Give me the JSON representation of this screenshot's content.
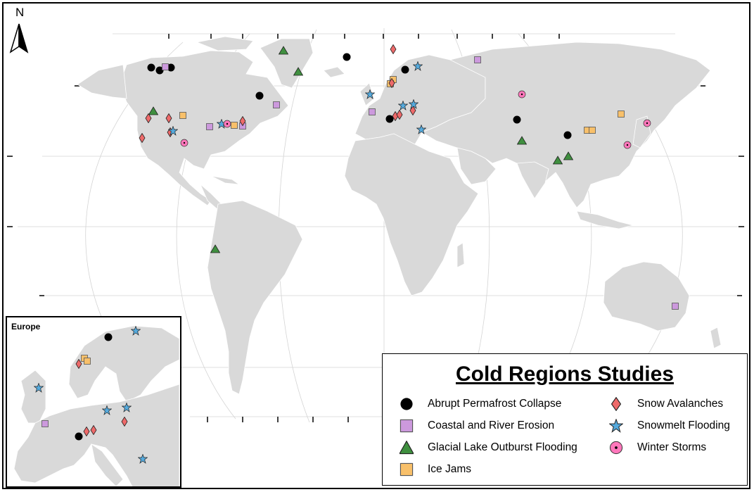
{
  "map": {
    "north_label": "N",
    "inset_title": "Europe"
  },
  "legend": {
    "title": "Cold Regions Studies",
    "items": [
      {
        "label": "Abrupt Permafrost Collapse",
        "icon": "black-circle",
        "color": "#000000"
      },
      {
        "label": "Coastal and River Erosion",
        "icon": "purple-square",
        "color": "#cc99dd"
      },
      {
        "label": "Glacial Lake Outburst Flooding",
        "icon": "green-triangle",
        "color": "#3f8f3f"
      },
      {
        "label": "Ice Jams",
        "icon": "orange-square",
        "color": "#f8c06a"
      },
      {
        "label": "Snow Avalanches",
        "icon": "red-diamond",
        "color": "#ee6a6a"
      },
      {
        "label": "Snowmelt Flooding",
        "icon": "blue-star",
        "color": "#55aadd"
      },
      {
        "label": "Winter Storms",
        "icon": "pink-dotted-circle",
        "color": "#ff77bb"
      }
    ]
  },
  "colors": {
    "land": "#d9d9d9",
    "border": "#ffffff",
    "graticule": "#d0d0d0"
  }
}
